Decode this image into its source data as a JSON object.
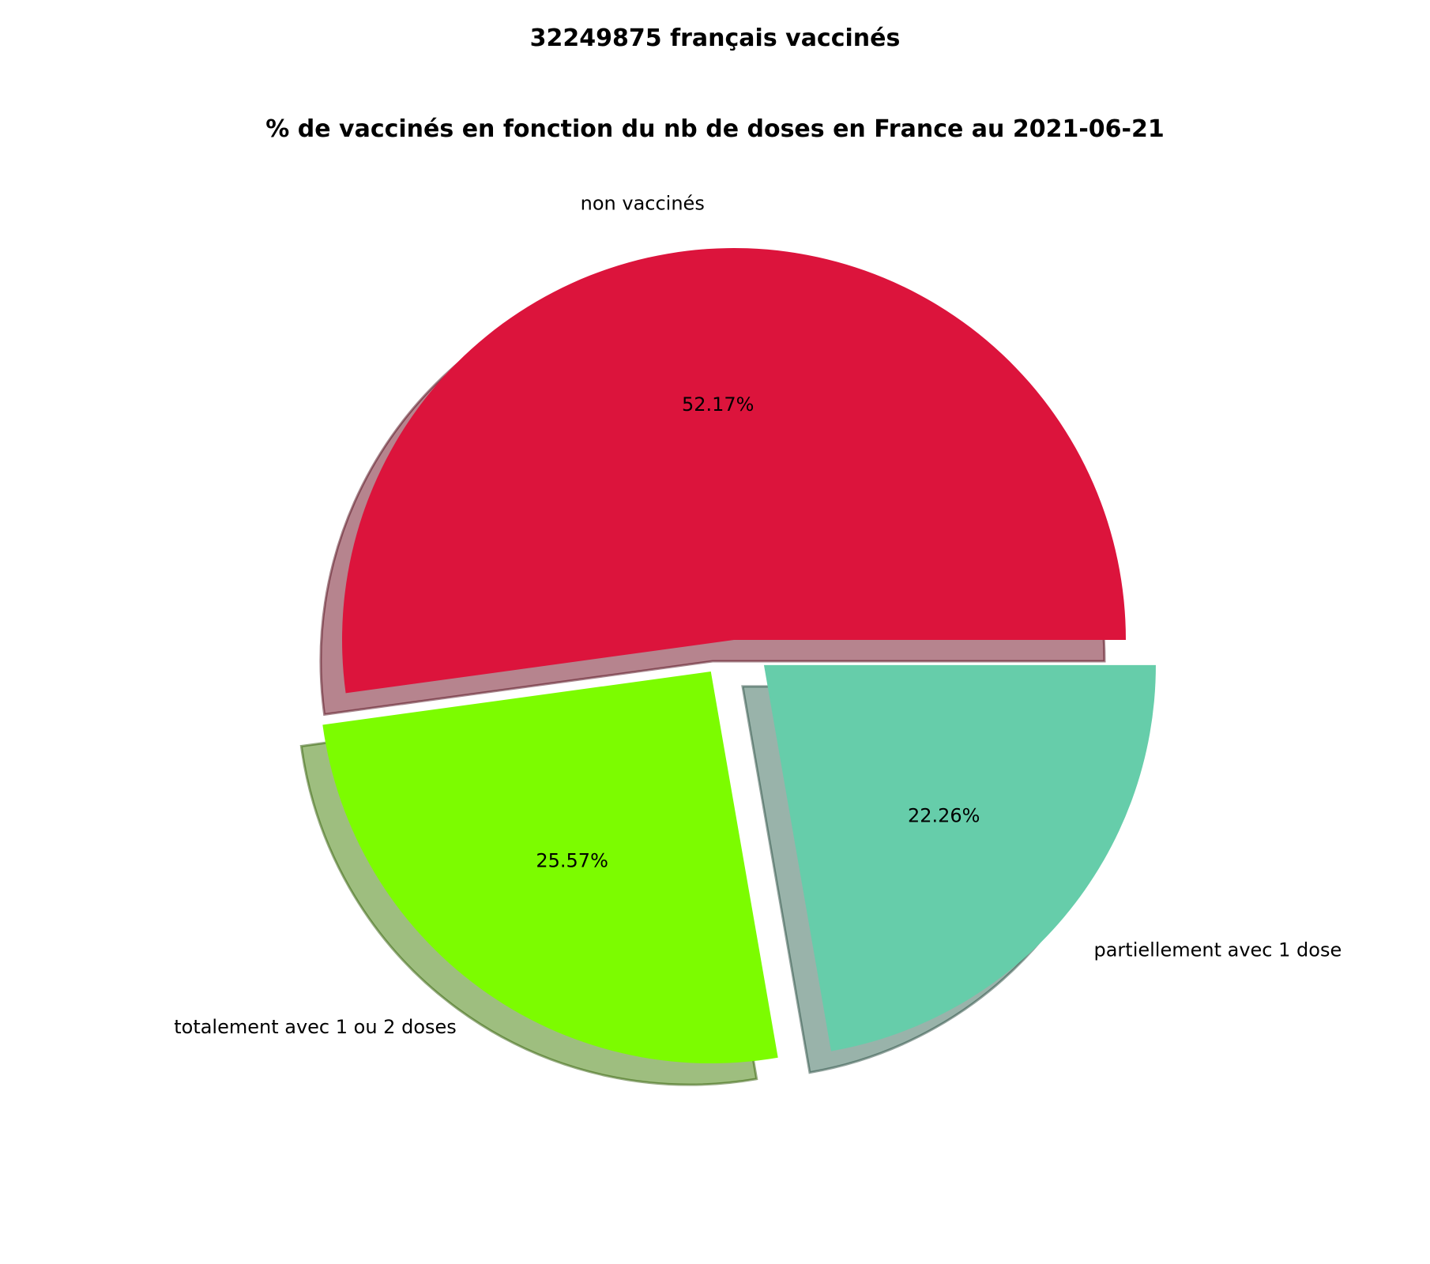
{
  "chart_data": {
    "type": "pie",
    "suptitle": "32249875 français vaccinés",
    "title": "% de vaccinés en fonction du nb de doses en France au 2021-06-21",
    "slices": [
      {
        "label": "non vaccinés",
        "value": 52.17,
        "pct_label": "52.17%",
        "color": "#dc143c",
        "exploded": false
      },
      {
        "label": "totalement avec 1 ou 2 doses",
        "value": 25.57,
        "pct_label": "25.57%",
        "color": "#7cfc00",
        "exploded": true
      },
      {
        "label": "partiellement avec 1 dose",
        "value": 22.26,
        "pct_label": "22.26%",
        "color": "#66cdaa",
        "exploded": true
      }
    ],
    "shadow": true,
    "legend": "none"
  }
}
